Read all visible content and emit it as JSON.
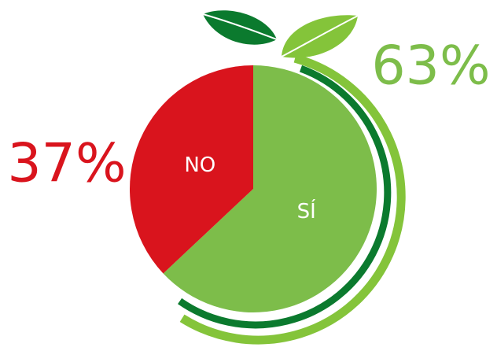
{
  "chart_data": {
    "type": "pie",
    "categories": [
      "NO",
      "SÍ"
    ],
    "values": [
      37,
      63
    ],
    "value_labels": [
      "37%",
      "63%"
    ],
    "colors": [
      "#d9141d",
      "#7dbd4a"
    ]
  }
}
